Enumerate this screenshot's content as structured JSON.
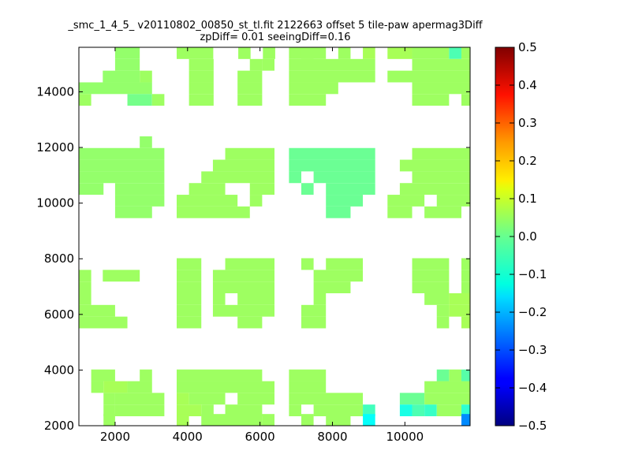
{
  "chart_data": {
    "type": "heatmap",
    "title_line1": "_smc_1_4_5_ v20110802_00850_st_tl.fit 2122663 offset 5 tile-paw apermag3Diff",
    "title_line2": "zpDiff= 0.01 seeingDiff=0.16",
    "xlim": [
      1000,
      11800
    ],
    "ylim": [
      2000,
      15600
    ],
    "x_ticks": [
      2000,
      4000,
      6000,
      8000,
      10000
    ],
    "y_ticks": [
      2000,
      4000,
      6000,
      8000,
      10000,
      12000,
      14000
    ],
    "colorbar": {
      "colormap": "jet",
      "vmin": -0.5,
      "vmax": 0.5,
      "ticks": [
        "0.5",
        "0.4",
        "0.3",
        "0.2",
        "0.1",
        "0.0",
        "−0.1",
        "−0.2",
        "−0.3",
        "−0.4",
        "−0.5"
      ]
    },
    "cell_size": [
      340,
      420
    ],
    "rows_note": "each row: y_bottom, list of [x_start, x_end, value]",
    "rows": [
      {
        "y": 15180,
        "runs": [
          [
            2000,
            2680,
            0.02
          ],
          [
            3700,
            3700,
            0
          ],
          [
            3700,
            4710,
            0.03
          ],
          [
            5400,
            5740,
            0.03
          ],
          [
            6080,
            6420,
            0.03
          ],
          [
            6800,
            7480,
            0.03
          ],
          [
            7140,
            7820,
            0.03
          ],
          [
            8160,
            8500,
            0.03
          ],
          [
            8840,
            9180,
            0.04
          ],
          [
            9520,
            10200,
            0.04
          ],
          [
            10200,
            11220,
            0.03
          ],
          [
            11220,
            11560,
            -0.05
          ],
          [
            11560,
            11800,
            0.03
          ]
        ]
      },
      {
        "y": 14760,
        "runs": [
          [
            2000,
            2680,
            0.02
          ],
          [
            4040,
            4720,
            0.03
          ],
          [
            5720,
            6060,
            0.03
          ],
          [
            6060,
            6400,
            0.03
          ],
          [
            6800,
            9180,
            0.03
          ],
          [
            10200,
            11800,
            0.03
          ]
        ]
      },
      {
        "y": 14340,
        "runs": [
          [
            1660,
            2680,
            0.02
          ],
          [
            2680,
            3020,
            0.03
          ],
          [
            4040,
            4720,
            0.03
          ],
          [
            5380,
            6060,
            0.03
          ],
          [
            6800,
            9180,
            0.03
          ],
          [
            9520,
            11800,
            0.03
          ]
        ]
      },
      {
        "y": 13920,
        "runs": [
          [
            1000,
            3020,
            0.02
          ],
          [
            4040,
            4720,
            0.03
          ],
          [
            5380,
            6060,
            0.03
          ],
          [
            6800,
            8160,
            0.03
          ],
          [
            10200,
            11800,
            0.03
          ]
        ]
      },
      {
        "y": 13500,
        "runs": [
          [
            1000,
            1340,
            0.03
          ],
          [
            2340,
            3020,
            -0.01
          ],
          [
            3020,
            3360,
            0.03
          ],
          [
            4040,
            4720,
            0.03
          ],
          [
            5380,
            6060,
            0.03
          ],
          [
            6800,
            7820,
            0.03
          ],
          [
            10200,
            11220,
            0.03
          ],
          [
            11560,
            11800,
            0.03
          ]
        ]
      },
      {
        "y": 11980,
        "runs": [
          [
            2680,
            3020,
            0.02
          ]
        ]
      },
      {
        "y": 11560,
        "runs": [
          [
            1000,
            3360,
            0.02
          ],
          [
            5040,
            6400,
            0.03
          ],
          [
            6800,
            9180,
            -0.02
          ],
          [
            10200,
            11800,
            0.03
          ]
        ]
      },
      {
        "y": 11140,
        "runs": [
          [
            1000,
            3360,
            0.02
          ],
          [
            4700,
            6400,
            0.03
          ],
          [
            6800,
            9180,
            -0.02
          ],
          [
            9860,
            11800,
            0.03
          ]
        ]
      },
      {
        "y": 10720,
        "runs": [
          [
            1000,
            3360,
            0.02
          ],
          [
            4380,
            6400,
            0.03
          ],
          [
            6800,
            7140,
            -0.02
          ],
          [
            7480,
            9180,
            -0.02
          ],
          [
            10200,
            11800,
            0.03
          ]
        ]
      },
      {
        "y": 10300,
        "runs": [
          [
            1000,
            1680,
            0.02
          ],
          [
            2000,
            3360,
            0.02
          ],
          [
            4040,
            5040,
            0.03
          ],
          [
            5720,
            6400,
            0.03
          ],
          [
            7140,
            7480,
            -0.02
          ],
          [
            7820,
            9180,
            -0.02
          ],
          [
            9860,
            11800,
            0.03
          ]
        ]
      },
      {
        "y": 9880,
        "runs": [
          [
            2000,
            3360,
            0.02
          ],
          [
            3700,
            5380,
            0.03
          ],
          [
            5720,
            6060,
            0.03
          ],
          [
            7820,
            8840,
            -0.02
          ],
          [
            9520,
            10540,
            0.03
          ],
          [
            10880,
            11800,
            0.03
          ]
        ]
      },
      {
        "y": 9460,
        "runs": [
          [
            2000,
            3020,
            0.02
          ],
          [
            3700,
            5720,
            0.03
          ],
          [
            7820,
            8500,
            -0.02
          ],
          [
            9520,
            10200,
            0.03
          ],
          [
            10540,
            11560,
            0.03
          ]
        ]
      },
      {
        "y": 7600,
        "runs": [
          [
            3700,
            4380,
            0.03
          ],
          [
            5040,
            6400,
            0.03
          ],
          [
            7140,
            7480,
            0.03
          ],
          [
            7820,
            8840,
            0.03
          ],
          [
            10200,
            11220,
            0.03
          ],
          [
            11560,
            11800,
            0.03
          ]
        ]
      },
      {
        "y": 7180,
        "runs": [
          [
            1000,
            1340,
            0.03
          ],
          [
            1660,
            2680,
            0.03
          ],
          [
            3700,
            4380,
            0.03
          ],
          [
            4700,
            6400,
            0.03
          ],
          [
            7480,
            8840,
            0.03
          ],
          [
            10200,
            11220,
            0.03
          ],
          [
            11560,
            11800,
            0.03
          ]
        ]
      },
      {
        "y": 6760,
        "runs": [
          [
            1000,
            1340,
            0.03
          ],
          [
            3700,
            4380,
            0.03
          ],
          [
            4700,
            6400,
            0.03
          ],
          [
            7480,
            8500,
            0.03
          ],
          [
            10200,
            11220,
            0.03
          ],
          [
            11560,
            11800,
            0.03
          ]
        ]
      },
      {
        "y": 6340,
        "runs": [
          [
            1000,
            1340,
            0.03
          ],
          [
            3700,
            4380,
            0.03
          ],
          [
            4700,
            5040,
            0.03
          ],
          [
            5380,
            6400,
            0.03
          ],
          [
            7480,
            7820,
            0.03
          ],
          [
            10540,
            11220,
            0.03
          ],
          [
            11220,
            11800,
            0.04
          ]
        ]
      },
      {
        "y": 5920,
        "runs": [
          [
            1000,
            2000,
            0.03
          ],
          [
            3700,
            4380,
            0.03
          ],
          [
            4700,
            6400,
            0.03
          ],
          [
            7140,
            7820,
            0.03
          ],
          [
            10880,
            11220,
            0.03
          ],
          [
            11220,
            11800,
            0.04
          ]
        ]
      },
      {
        "y": 5500,
        "runs": [
          [
            1000,
            2340,
            0.03
          ],
          [
            3700,
            4380,
            0.03
          ],
          [
            5380,
            6060,
            0.03
          ],
          [
            7140,
            7820,
            0.03
          ],
          [
            10880,
            11220,
            0.03
          ],
          [
            11560,
            11800,
            0.04
          ]
        ]
      },
      {
        "y": 3600,
        "runs": [
          [
            1340,
            2000,
            0.03
          ],
          [
            2680,
            3020,
            0.03
          ],
          [
            3700,
            6060,
            0.03
          ],
          [
            6800,
            7820,
            0.03
          ],
          [
            10880,
            11220,
            -0.02
          ],
          [
            11220,
            11560,
            0.03
          ],
          [
            11560,
            11800,
            -0.04
          ]
        ]
      },
      {
        "y": 3180,
        "runs": [
          [
            1340,
            1680,
            0.03
          ],
          [
            1680,
            2340,
            0.04
          ],
          [
            2340,
            3020,
            0.03
          ],
          [
            3700,
            6400,
            0.03
          ],
          [
            6800,
            7820,
            0.03
          ],
          [
            10540,
            11800,
            0.03
          ]
        ]
      },
      {
        "y": 2760,
        "runs": [
          [
            1680,
            2000,
            0.03
          ],
          [
            2000,
            3360,
            0.03
          ],
          [
            3700,
            4040,
            0.04
          ],
          [
            4040,
            5040,
            0.03
          ],
          [
            5380,
            6400,
            0.03
          ],
          [
            6800,
            8840,
            0.03
          ],
          [
            9860,
            10540,
            -0.02
          ],
          [
            10540,
            11800,
            0.03
          ]
        ]
      },
      {
        "y": 2340,
        "runs": [
          [
            1680,
            2000,
            0.03
          ],
          [
            2000,
            3360,
            0.03
          ],
          [
            3700,
            4380,
            0.04
          ],
          [
            4380,
            4720,
            0.03
          ],
          [
            5040,
            6060,
            0.03
          ],
          [
            6800,
            7140,
            0.03
          ],
          [
            7480,
            8840,
            0.03
          ],
          [
            8840,
            9180,
            -0.06
          ],
          [
            9860,
            10200,
            -0.1
          ],
          [
            10200,
            10540,
            -0.05
          ],
          [
            10540,
            10880,
            -0.07
          ],
          [
            10880,
            11560,
            0.03
          ],
          [
            11560,
            11800,
            -0.08
          ]
        ]
      },
      {
        "y": 2000,
        "runs": [
          [
            1680,
            2000,
            0.03
          ],
          [
            3700,
            3700,
            0
          ],
          [
            3700,
            4040,
            0.04
          ],
          [
            4380,
            6060,
            0.03
          ],
          [
            6060,
            6400,
            0.03
          ],
          [
            7140,
            7480,
            0.03
          ],
          [
            7820,
            8500,
            0.03
          ],
          [
            8840,
            9180,
            -0.12
          ],
          [
            11560,
            11800,
            -0.24
          ]
        ]
      }
    ]
  }
}
